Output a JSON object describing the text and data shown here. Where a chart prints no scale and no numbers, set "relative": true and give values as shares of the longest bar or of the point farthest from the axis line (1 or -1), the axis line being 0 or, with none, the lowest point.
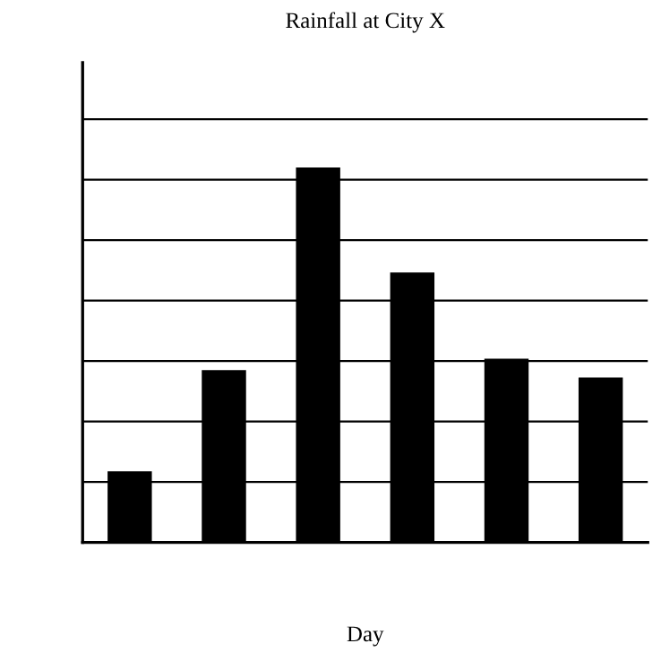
{
  "chart_data": {
    "type": "bar",
    "title": "Rainfall at City X",
    "xlabel": "Day",
    "categories": [
      null,
      null,
      null,
      null,
      null,
      null
    ],
    "values": [
      0.19,
      0.46,
      1,
      0.72,
      0.49,
      0.44
    ],
    "color": "#000000",
    "relative": true,
    "grid": "y"
  }
}
